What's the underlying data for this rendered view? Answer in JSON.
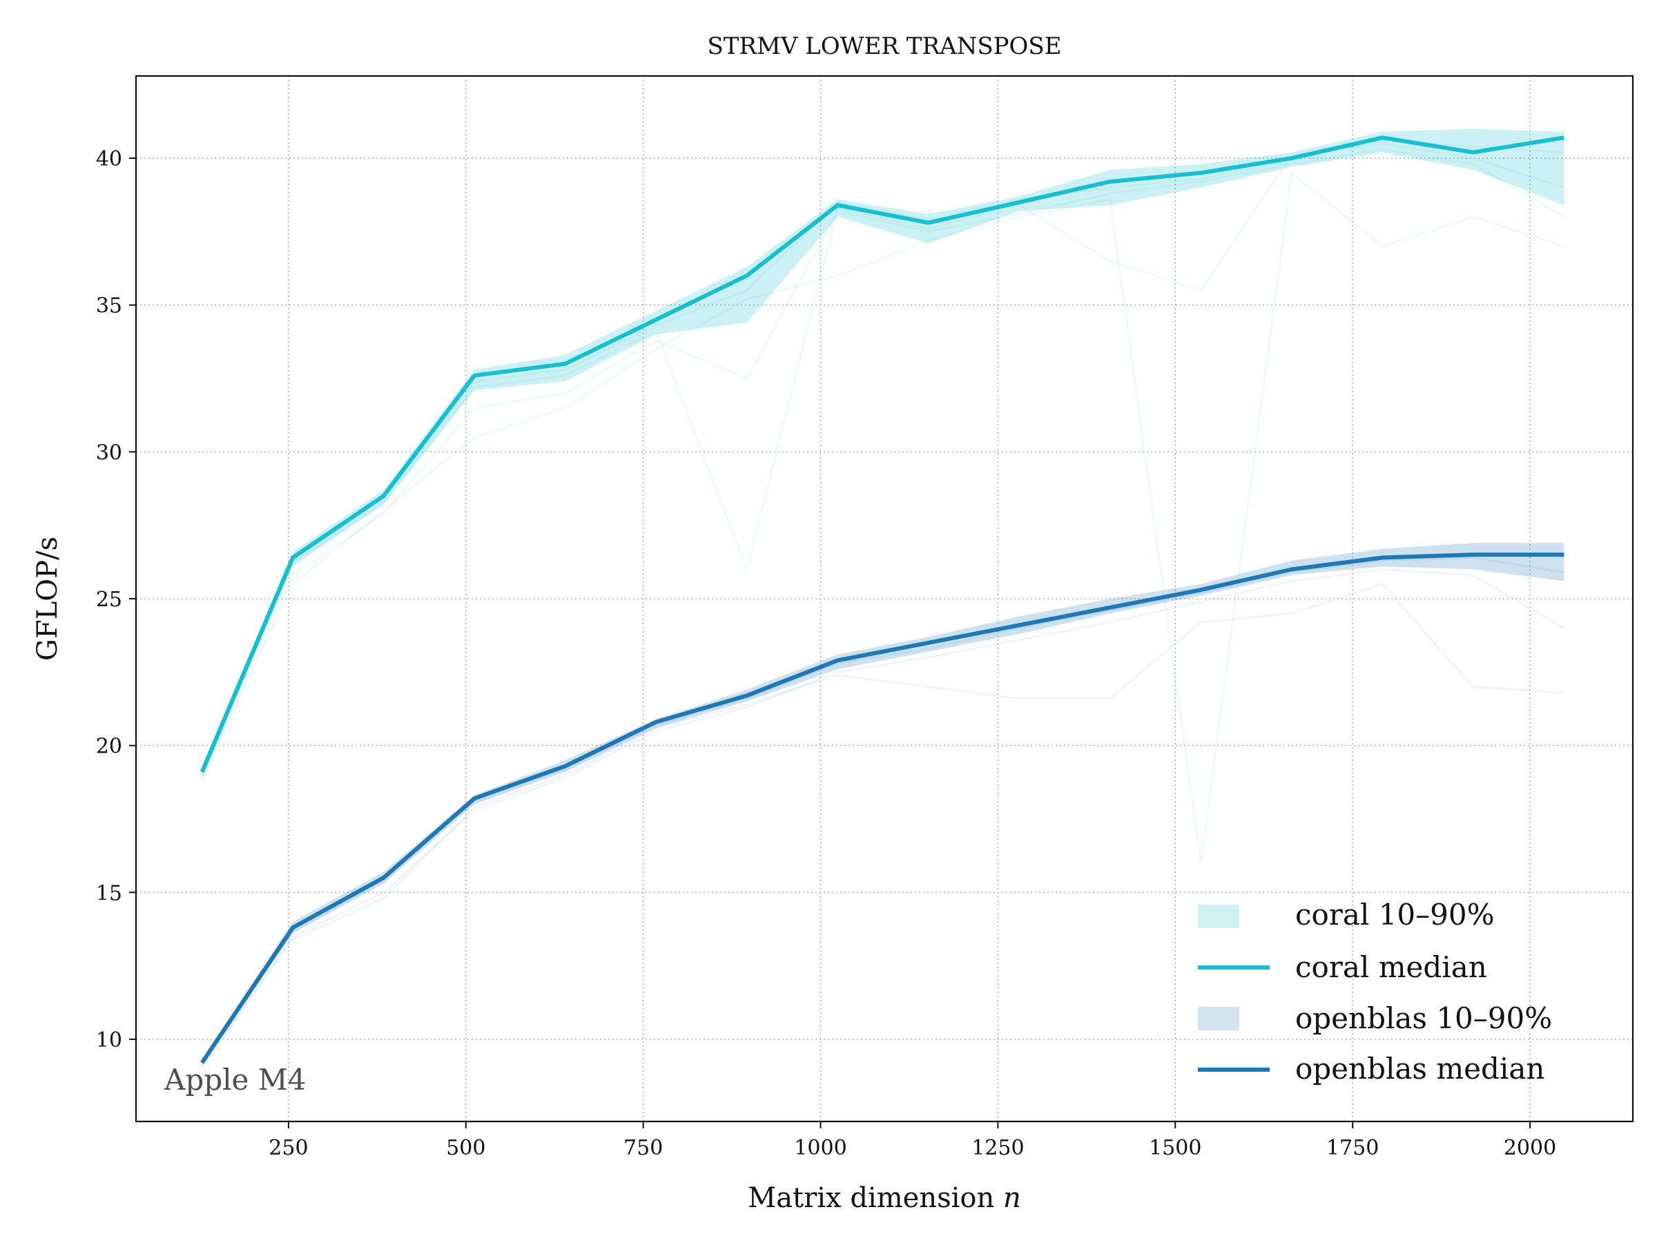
{
  "chart_data": {
    "type": "line",
    "title": "STRMV LOWER TRANSPOSE",
    "xlabel": "Matrix dimension",
    "xlabel_var": "n",
    "ylabel": "GFLOP/s",
    "annotation": "Apple M4",
    "xlim": [
      35,
      2145
    ],
    "ylim": [
      7.2,
      42.8
    ],
    "xticks": [
      250,
      500,
      750,
      1000,
      1250,
      1500,
      1750,
      2000
    ],
    "yticks": [
      10,
      15,
      20,
      25,
      30,
      35,
      40
    ],
    "grid": true,
    "legend_position": "lower-right",
    "x": [
      128,
      256,
      384,
      512,
      640,
      768,
      896,
      1024,
      1152,
      1280,
      1408,
      1536,
      1664,
      1792,
      1920,
      2048
    ],
    "series": [
      {
        "name": "coral median",
        "band_name": "coral 10–90%",
        "color": "#17becf",
        "median": [
          19.1,
          26.4,
          28.5,
          32.6,
          33.0,
          34.5,
          36.0,
          38.4,
          37.8,
          38.5,
          39.2,
          39.5,
          40.0,
          40.7,
          40.2,
          40.7
        ],
        "p10": [
          18.9,
          26.1,
          28.2,
          32.1,
          32.4,
          34.0,
          34.4,
          38.0,
          37.1,
          38.2,
          38.4,
          39.0,
          39.7,
          40.2,
          39.6,
          38.4
        ],
        "p90": [
          19.3,
          26.6,
          28.7,
          32.8,
          33.3,
          34.8,
          36.3,
          38.6,
          38.1,
          38.7,
          39.6,
          39.8,
          40.2,
          40.9,
          41.0,
          40.9
        ],
        "trials": [
          [
            18.8,
            25.8,
            27.9,
            31.5,
            32.0,
            33.8,
            32.5,
            38.2,
            37.5,
            38.1,
            38.8,
            39.2,
            39.8,
            40.3,
            39.8,
            38.0
          ],
          [
            19.0,
            26.2,
            28.3,
            32.2,
            32.6,
            34.1,
            26.0,
            38.3,
            37.6,
            38.4,
            36.5,
            35.5,
            40.1,
            40.5,
            40.0,
            39.0
          ],
          [
            18.9,
            25.5,
            28.0,
            30.5,
            31.5,
            33.5,
            35.2,
            36.0,
            37.2,
            38.0,
            38.6,
            16.0,
            39.5,
            37.0,
            38.0,
            37.0
          ],
          [
            19.2,
            26.3,
            28.4,
            32.4,
            32.8,
            34.3,
            35.5,
            38.5,
            37.9,
            38.6,
            39.0,
            39.3,
            39.9,
            40.6,
            40.4,
            40.2
          ]
        ]
      },
      {
        "name": "openblas median",
        "band_name": "openblas 10–90%",
        "color": "#1f77b4",
        "median": [
          9.2,
          13.8,
          15.5,
          18.2,
          19.3,
          20.8,
          21.7,
          22.9,
          23.5,
          24.1,
          24.7,
          25.3,
          26.0,
          26.4,
          26.5,
          26.5
        ],
        "p10": [
          9.1,
          13.6,
          15.3,
          18.0,
          19.1,
          20.6,
          21.5,
          22.6,
          23.2,
          23.8,
          24.5,
          25.1,
          25.8,
          26.1,
          26.0,
          25.6
        ],
        "p90": [
          9.3,
          14.0,
          15.7,
          18.3,
          19.5,
          20.9,
          21.9,
          23.1,
          23.7,
          24.4,
          25.0,
          25.5,
          26.3,
          26.7,
          26.9,
          26.9
        ],
        "trials": [
          [
            9.0,
            13.5,
            15.0,
            17.8,
            18.9,
            20.5,
            21.3,
            22.5,
            23.0,
            23.6,
            24.2,
            24.9,
            25.6,
            26.0,
            25.8,
            24.0
          ],
          [
            9.1,
            13.4,
            14.8,
            17.9,
            19.0,
            20.6,
            21.4,
            22.4,
            22.0,
            21.6,
            21.6,
            24.2,
            24.5,
            25.5,
            22.0,
            21.8
          ],
          [
            9.2,
            13.7,
            15.4,
            18.1,
            19.2,
            20.7,
            21.6,
            22.8,
            23.3,
            24.0,
            24.6,
            25.2,
            25.9,
            26.3,
            26.4,
            25.9
          ]
        ]
      }
    ]
  }
}
